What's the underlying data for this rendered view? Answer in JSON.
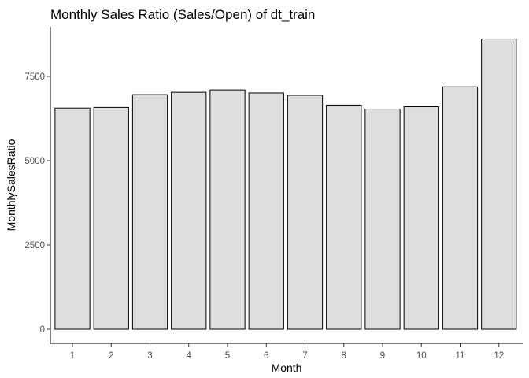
{
  "chart_data": {
    "type": "bar",
    "title": "Monthly Sales Ratio (Sales/Open) of dt_train",
    "xlabel": "Month",
    "ylabel": "MonthlySalesRatio",
    "categories": [
      "1",
      "2",
      "3",
      "4",
      "5",
      "6",
      "7",
      "8",
      "9",
      "10",
      "11",
      "12"
    ],
    "values": [
      6560,
      6580,
      6960,
      7030,
      7100,
      7010,
      6940,
      6650,
      6530,
      6600,
      7190,
      8610
    ],
    "yticks": [
      0,
      2500,
      5000,
      7500
    ],
    "ytick_labels": [
      "0",
      "2500",
      "5000",
      "7500"
    ],
    "ylim": [
      0,
      9000
    ],
    "grid": false,
    "bar_fill": "#dedede",
    "bar_stroke": "#000000"
  }
}
